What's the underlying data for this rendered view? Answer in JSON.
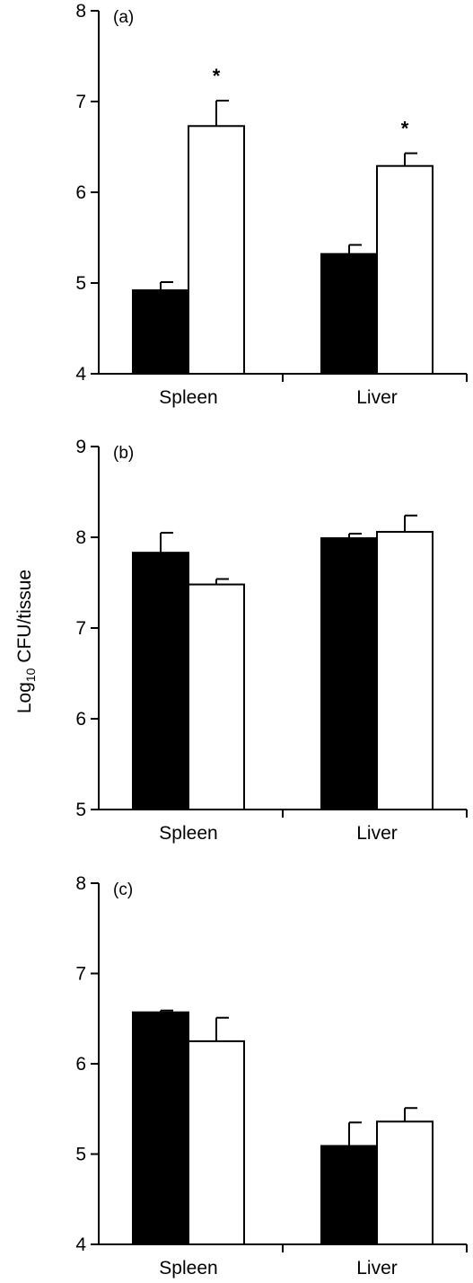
{
  "figure": {
    "ylabel_main": "Log",
    "ylabel_sub": "10",
    "ylabel_rest": " CFU/tissue"
  },
  "chart_data": [
    {
      "type": "bar",
      "panel_label": "(a)",
      "categories": [
        "Spleen",
        "Liver"
      ],
      "ylim": [
        4,
        8
      ],
      "yticks": [
        "4",
        "5",
        "6",
        "7",
        "8"
      ],
      "series": [
        {
          "fill": "#000000",
          "values": [
            4.92,
            5.32
          ],
          "errors": [
            0.09,
            0.1
          ],
          "marks": [
            "",
            ""
          ]
        },
        {
          "fill": "#ffffff",
          "values": [
            6.73,
            6.29
          ],
          "errors": [
            0.28,
            0.14
          ],
          "marks": [
            "*",
            "*"
          ]
        }
      ]
    },
    {
      "type": "bar",
      "panel_label": "(b)",
      "categories": [
        "Spleen",
        "Liver"
      ],
      "ylim": [
        5,
        9
      ],
      "yticks": [
        "5",
        "6",
        "7",
        "8",
        "9"
      ],
      "series": [
        {
          "fill": "#000000",
          "values": [
            7.83,
            7.99
          ],
          "errors": [
            0.22,
            0.05
          ],
          "marks": [
            "",
            ""
          ]
        },
        {
          "fill": "#ffffff",
          "values": [
            7.48,
            8.06
          ],
          "errors": [
            0.06,
            0.18
          ],
          "marks": [
            "",
            ""
          ]
        }
      ]
    },
    {
      "type": "bar",
      "panel_label": "(c)",
      "categories": [
        "Spleen",
        "Liver"
      ],
      "ylim": [
        4,
        8
      ],
      "yticks": [
        "4",
        "5",
        "6",
        "7",
        "8"
      ],
      "series": [
        {
          "fill": "#000000",
          "values": [
            6.57,
            5.09
          ],
          "errors": [
            0.02,
            0.26
          ],
          "marks": [
            "",
            ""
          ]
        },
        {
          "fill": "#ffffff",
          "values": [
            6.25,
            5.36
          ],
          "errors": [
            0.26,
            0.15
          ],
          "marks": [
            "",
            ""
          ]
        }
      ]
    }
  ]
}
